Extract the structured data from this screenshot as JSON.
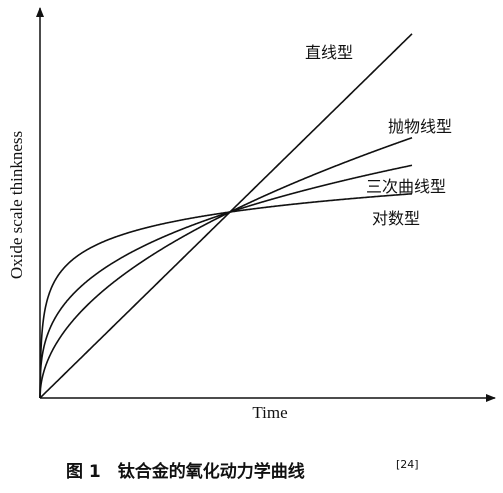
{
  "axes": {
    "y_label": "Oxide scale thinkness",
    "x_label": "Time"
  },
  "curves": [
    {
      "label": "直线型"
    },
    {
      "label": "抛物线型"
    },
    {
      "label": "三次曲线型"
    },
    {
      "label": "对数型"
    }
  ],
  "caption": {
    "text": "图 1　钛合金的氧化动力学曲线",
    "ref": "[24]"
  }
}
